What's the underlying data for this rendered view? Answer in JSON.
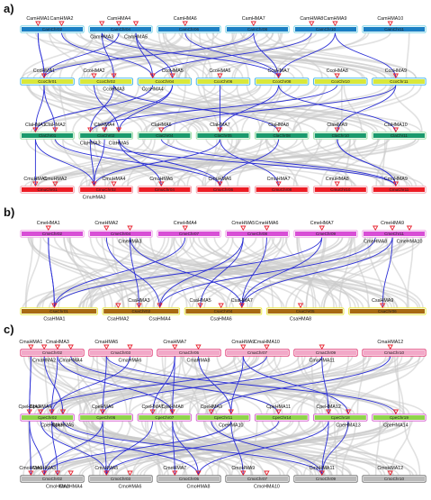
{
  "colors": {
    "synteny_bg": "#c9c9c9",
    "synteny_link": "#2b2fd6",
    "marker": "#e8232f"
  },
  "panels": [
    {
      "id": "a",
      "letter": "a)",
      "tracks": [
        {
          "chromosomes": [
            "CamChr02",
            "CamChr04",
            "CamChr06",
            "CamChr08",
            "CamChr10",
            "CamChr11"
          ],
          "fill": "#1b7fc4",
          "border": "#7fd6e8",
          "genes": [
            {
              "label": "CamHMA1",
              "side": "above",
              "chr": 0
            },
            {
              "label": "CamHMA2",
              "side": "above",
              "chr": 0
            },
            {
              "label": "CamHMA3",
              "side": "below",
              "chr": 1
            },
            {
              "label": "CamHMA4",
              "side": "above",
              "chr": 1
            },
            {
              "label": "CamHMA5",
              "side": "below",
              "chr": 1
            },
            {
              "label": "CamHMA6",
              "side": "above",
              "chr": 2
            },
            {
              "label": "CamHMA7",
              "side": "above",
              "chr": 3
            },
            {
              "label": "CamHMA8",
              "side": "above",
              "chr": 4
            },
            {
              "label": "CamHMA9",
              "side": "above",
              "chr": 4
            },
            {
              "label": "CamHMA10",
              "side": "above",
              "chr": 5
            }
          ]
        },
        {
          "chromosomes": [
            "CcoChr01",
            "CcoChr02",
            "CcoChr04",
            "CcoChr06",
            "CcoChr08",
            "CcoChr10",
            "CcoChr11"
          ],
          "fill": "#d9e83a",
          "border": "#4fb8e8",
          "genes": [
            {
              "label": "CcoHMA1",
              "side": "above",
              "chr": 0
            },
            {
              "label": "CcoHMA2",
              "side": "above",
              "chr": 1
            },
            {
              "label": "CcoHMA3",
              "side": "below",
              "chr": 1
            },
            {
              "label": "CcoHMA4",
              "side": "below",
              "chr": 2
            },
            {
              "label": "CcoHMA5",
              "side": "above",
              "chr": 2
            },
            {
              "label": "CcoHMA6",
              "side": "above",
              "chr": 3
            },
            {
              "label": "CcoHMA7",
              "side": "above",
              "chr": 4
            },
            {
              "label": "CcoHMA8",
              "side": "above",
              "chr": 5
            },
            {
              "label": "CcoHMA9",
              "side": "above",
              "chr": 6
            }
          ]
        },
        {
          "chromosomes": [
            "ClaChr01",
            "ClaChr02",
            "ClaChr04",
            "ClaChr05",
            "ClaChr08",
            "ClaChr10",
            "ClaChr11"
          ],
          "fill": "#1a9a6c",
          "border": "#9fe0a8",
          "genes": [
            {
              "label": "ClaHMA1",
              "side": "above",
              "chr": 0
            },
            {
              "label": "ClaHMA2",
              "side": "above",
              "chr": 0
            },
            {
              "label": "ClaHMA3",
              "side": "below",
              "chr": 1
            },
            {
              "label": "ClaHMA4",
              "side": "above",
              "chr": 1
            },
            {
              "label": "ClaHMA5",
              "side": "below",
              "chr": 1
            },
            {
              "label": "ClaHMA6",
              "side": "above",
              "chr": 2
            },
            {
              "label": "ClaHMA7",
              "side": "above",
              "chr": 3
            },
            {
              "label": "ClaHMA8",
              "side": "above",
              "chr": 4
            },
            {
              "label": "ClaHMA9",
              "side": "above",
              "chr": 5
            },
            {
              "label": "ClaHMA10",
              "side": "above",
              "chr": 6
            }
          ]
        },
        {
          "chromosomes": [
            "CmuChr01",
            "CmuChr02",
            "CmuChr04",
            "CmuChr06",
            "CmuChr08",
            "CmuChr10",
            "CmuChr11"
          ],
          "fill": "#ec1c24",
          "border": "#f3a7b3",
          "genes": [
            {
              "label": "CmuHMA1",
              "side": "above",
              "chr": 0
            },
            {
              "label": "CmuHMA2",
              "side": "above",
              "chr": 0
            },
            {
              "label": "CmuHMA3",
              "side": "below",
              "chr": 1
            },
            {
              "label": "CmuHMA4",
              "side": "above",
              "chr": 1
            },
            {
              "label": "CmuHMA5",
              "side": "above",
              "chr": 2
            },
            {
              "label": "CmuHMA6",
              "side": "above",
              "chr": 3
            },
            {
              "label": "CmuHMA7",
              "side": "above",
              "chr": 4
            },
            {
              "label": "CmuHMA8",
              "side": "above",
              "chr": 5
            },
            {
              "label": "CmuHMA9",
              "side": "above",
              "chr": 6
            }
          ]
        }
      ]
    },
    {
      "id": "b",
      "letter": "b)",
      "tracks": [
        {
          "chromosomes": [
            "CmeChr02",
            "CmeChr04",
            "CmeChr07",
            "CmeChr08",
            "CmeChr09",
            "CmeChr11"
          ],
          "fill": "#d84fd6",
          "border": "#f0a9e8",
          "genes": [
            {
              "label": "CmeHMA1",
              "side": "above",
              "chr": 0
            },
            {
              "label": "CmeHMA2",
              "side": "above",
              "chr": 1
            },
            {
              "label": "CmeHMA3",
              "side": "below",
              "chr": 1
            },
            {
              "label": "CmeHMA4",
              "side": "above",
              "chr": 2
            },
            {
              "label": "CmeHMA5",
              "side": "above",
              "chr": 3
            },
            {
              "label": "CmeHMA6",
              "side": "above",
              "chr": 3
            },
            {
              "label": "CmeHMA7",
              "side": "above",
              "chr": 4
            },
            {
              "label": "CmeHMA8",
              "side": "below",
              "chr": 5
            },
            {
              "label": "CmeHMA9",
              "side": "above",
              "chr": 5
            },
            {
              "label": "CmeHMA10",
              "side": "below",
              "chr": 5
            }
          ]
        },
        {
          "chromosomes": [
            "CsaChr01",
            "CsaChr02",
            "CsaChr04",
            "CsaChr05",
            "CsaChr06"
          ],
          "fill": "#a86a12",
          "border": "#ecec4a",
          "genes": [
            {
              "label": "CsaHMA1",
              "side": "below",
              "chr": 0
            },
            {
              "label": "CsaHMA2",
              "side": "below",
              "chr": 1
            },
            {
              "label": "CsaHMA3",
              "side": "above",
              "chr": 1
            },
            {
              "label": "CsaHMA4",
              "side": "below",
              "chr": 1
            },
            {
              "label": "CsaHMA5",
              "side": "above",
              "chr": 2
            },
            {
              "label": "CsaHMA6",
              "side": "below",
              "chr": 2
            },
            {
              "label": "CsaHMA7",
              "side": "above",
              "chr": 2
            },
            {
              "label": "CsaHMA8",
              "side": "below",
              "chr": 3
            },
            {
              "label": "CsaHMA9",
              "side": "above",
              "chr": 4
            }
          ]
        }
      ]
    },
    {
      "id": "c",
      "letter": "c)",
      "tracks": [
        {
          "chromosomes": [
            "CmaChr02",
            "CmaChr03",
            "CmaChr05",
            "CmaChr07",
            "CmaChr09",
            "CmaChr10"
          ],
          "fill": "#f2a8c8",
          "border": "#e0407a",
          "genes": [
            {
              "label": "CmaHMA1",
              "side": "above",
              "chr": 0
            },
            {
              "label": "CmaHMA2",
              "side": "below",
              "chr": 0
            },
            {
              "label": "CmaHMA3",
              "side": "above",
              "chr": 0
            },
            {
              "label": "CmaHMA4",
              "side": "below",
              "chr": 0
            },
            {
              "label": "CmaHMA5",
              "side": "above",
              "chr": 1
            },
            {
              "label": "CmaHMA6",
              "side": "below",
              "chr": 1
            },
            {
              "label": "CmaHMA7",
              "side": "above",
              "chr": 2
            },
            {
              "label": "CmaHMA8",
              "side": "below",
              "chr": 2
            },
            {
              "label": "CmaHMA9",
              "side": "above",
              "chr": 3
            },
            {
              "label": "CmaHMA10",
              "side": "above",
              "chr": 3
            },
            {
              "label": "CmaHMA11",
              "side": "below",
              "chr": 4
            },
            {
              "label": "CmaHMA12",
              "side": "above",
              "chr": 5
            }
          ]
        },
        {
          "chromosomes": [
            "CpeChr02",
            "CpeChr06",
            "CpeChr07",
            "CpeChr11",
            "CpeChr14",
            "CpeChr18",
            "CpeChr19"
          ],
          "fill": "#8fd44a",
          "border": "#d86ad0",
          "genes": [
            {
              "label": "CpeHMA2",
              "side": "above",
              "chr": 0
            },
            {
              "label": "CpeHMA4",
              "side": "above",
              "chr": 0
            },
            {
              "label": "CpeHMA3",
              "side": "below",
              "chr": 0
            },
            {
              "label": "CpeHMA5",
              "side": "below",
              "chr": 0
            },
            {
              "label": "CpeHMA6",
              "side": "above",
              "chr": 1
            },
            {
              "label": "CpeHMA7",
              "side": "above",
              "chr": 2
            },
            {
              "label": "CpeHMA8",
              "side": "above",
              "chr": 2
            },
            {
              "label": "CpeHMA9",
              "side": "above",
              "chr": 3
            },
            {
              "label": "CpeHMA10",
              "side": "below",
              "chr": 3
            },
            {
              "label": "CpeHMA11",
              "side": "above",
              "chr": 4
            },
            {
              "label": "CpeHMA12",
              "side": "above",
              "chr": 5
            },
            {
              "label": "CpeHMA13",
              "side": "below",
              "chr": 5
            },
            {
              "label": "CpeHMA14",
              "side": "below",
              "chr": 6
            }
          ]
        },
        {
          "chromosomes": [
            "CmoChr02",
            "CmoChr03",
            "CmoChr05",
            "CmoChr07",
            "CmoChr09",
            "CmoChr10"
          ],
          "fill": "#b9b9b9",
          "border": "#777777",
          "genes": [
            {
              "label": "CmoHMA1",
              "side": "above",
              "chr": 0
            },
            {
              "label": "CmoHMA3",
              "side": "above",
              "chr": 0
            },
            {
              "label": "CmoHMA2",
              "side": "below",
              "chr": 0
            },
            {
              "label": "CmoHMA4",
              "side": "below",
              "chr": 0
            },
            {
              "label": "CmoHMA5",
              "side": "above",
              "chr": 1
            },
            {
              "label": "CmoHMA6",
              "side": "below",
              "chr": 1
            },
            {
              "label": "CmoHMA7",
              "side": "above",
              "chr": 2
            },
            {
              "label": "CmoHMA8",
              "side": "below",
              "chr": 2
            },
            {
              "label": "CmoHMA9",
              "side": "above",
              "chr": 3
            },
            {
              "label": "CmoHMA10",
              "side": "below",
              "chr": 3
            },
            {
              "label": "CmoHMA11",
              "side": "above",
              "chr": 4
            },
            {
              "label": "CmoHMA12",
              "side": "above",
              "chr": 5
            }
          ]
        }
      ]
    }
  ]
}
